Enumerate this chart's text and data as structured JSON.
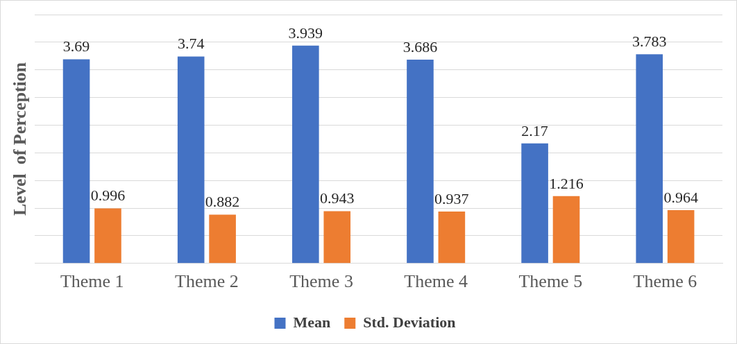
{
  "chart_data": {
    "type": "bar",
    "ylabel": "Level  of Perception",
    "categories": [
      "Theme 1",
      "Theme 2",
      "Theme 3",
      "Theme 4",
      "Theme 5",
      "Theme 6"
    ],
    "series": [
      {
        "name": "Mean",
        "color": "#4472c4",
        "values": [
          3.69,
          3.74,
          3.939,
          3.686,
          2.17,
          3.783
        ]
      },
      {
        "name": "Std. Deviation",
        "color": "#ed7d31",
        "values": [
          0.996,
          0.882,
          0.943,
          0.937,
          1.216,
          0.964
        ]
      }
    ],
    "ylim": [
      0,
      4.5
    ],
    "yticks": [
      {
        "value": 0,
        "label": null
      },
      {
        "value": 0.5,
        "label": null
      },
      {
        "value": 1,
        "label": null
      },
      {
        "value": 1.5,
        "label": null
      },
      {
        "value": 2,
        "label": null
      },
      {
        "value": 2.5,
        "label": null
      },
      {
        "value": 3,
        "label": null
      },
      {
        "value": 3.5,
        "label": null
      },
      {
        "value": 4,
        "label": null
      },
      {
        "value": 4.5,
        "label": null
      }
    ],
    "tick_labels": "x",
    "grid": "y",
    "legend": "bottom",
    "data_labels": true
  }
}
